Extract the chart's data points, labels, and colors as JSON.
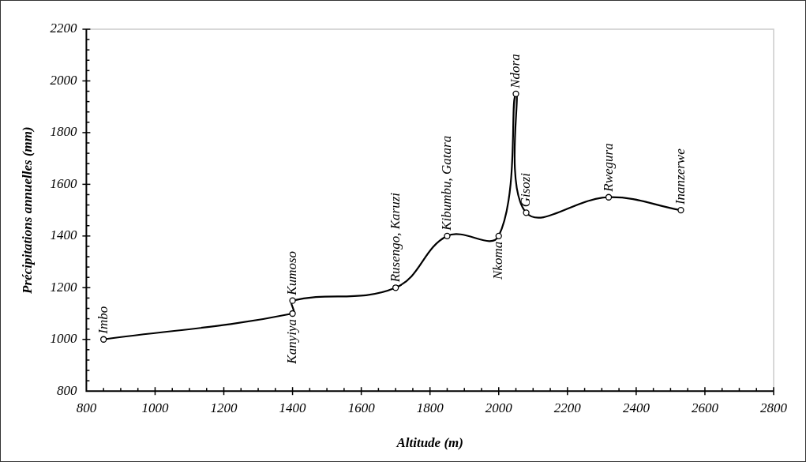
{
  "chart_data": {
    "type": "line",
    "xlabel": "Altitude (m)",
    "ylabel": "Précipitations annuelles (mm)",
    "x": [
      850,
      1400,
      1400,
      1700,
      1850,
      2000,
      2050,
      2080,
      2320,
      2530
    ],
    "series": [
      {
        "color": "#000000",
        "values": [
          1000,
          1100,
          1150,
          1200,
          1400,
          1400,
          1950,
          1490,
          1550,
          1500
        ]
      }
    ],
    "xlim": [
      800,
      2800
    ],
    "xticks": [
      800,
      1000,
      1200,
      1400,
      1600,
      1800,
      2000,
      2200,
      2400,
      2600,
      2800
    ],
    "ylim": [
      800,
      2200
    ],
    "yticks": [
      800,
      1000,
      1200,
      1400,
      1600,
      1800,
      2000,
      2200
    ],
    "grid": false,
    "legend": false,
    "marker": "circle",
    "line_style": "solid",
    "annotations": [
      {
        "text": "Imbo",
        "x": 850,
        "y": 1000
      },
      {
        "text": "Kanyiya",
        "x": 1400,
        "y": 1100
      },
      {
        "text": "Kumoso",
        "x": 1400,
        "y": 1150
      },
      {
        "text": "Rusengo, Karuzi",
        "x": 1700,
        "y": 1200
      },
      {
        "text": "Kibumbu, Gatara",
        "x": 1850,
        "y": 1400
      },
      {
        "text": "Nkoma",
        "x": 2000,
        "y": 1400
      },
      {
        "text": "Ndora",
        "x": 2050,
        "y": 1950
      },
      {
        "text": "Gisozi",
        "x": 2080,
        "y": 1490
      },
      {
        "text": "Rwegura",
        "x": 2320,
        "y": 1550
      },
      {
        "text": "Inanzerwe",
        "x": 2530,
        "y": 1500
      }
    ]
  }
}
